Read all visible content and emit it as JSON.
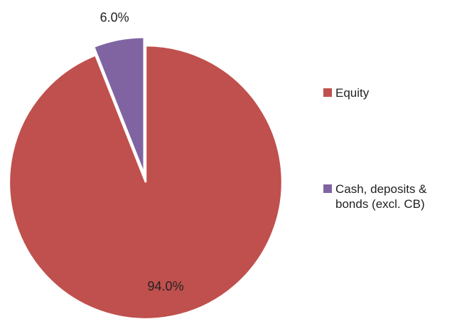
{
  "chart_data": {
    "type": "pie",
    "categories": [
      "Equity",
      "Cash, deposits & bonds (excl. CB)"
    ],
    "values": [
      94.0,
      6.0
    ],
    "value_labels": [
      "94.0%",
      "6.0%"
    ],
    "colors": [
      "#c0504d",
      "#8064a2"
    ],
    "legend": "right"
  }
}
